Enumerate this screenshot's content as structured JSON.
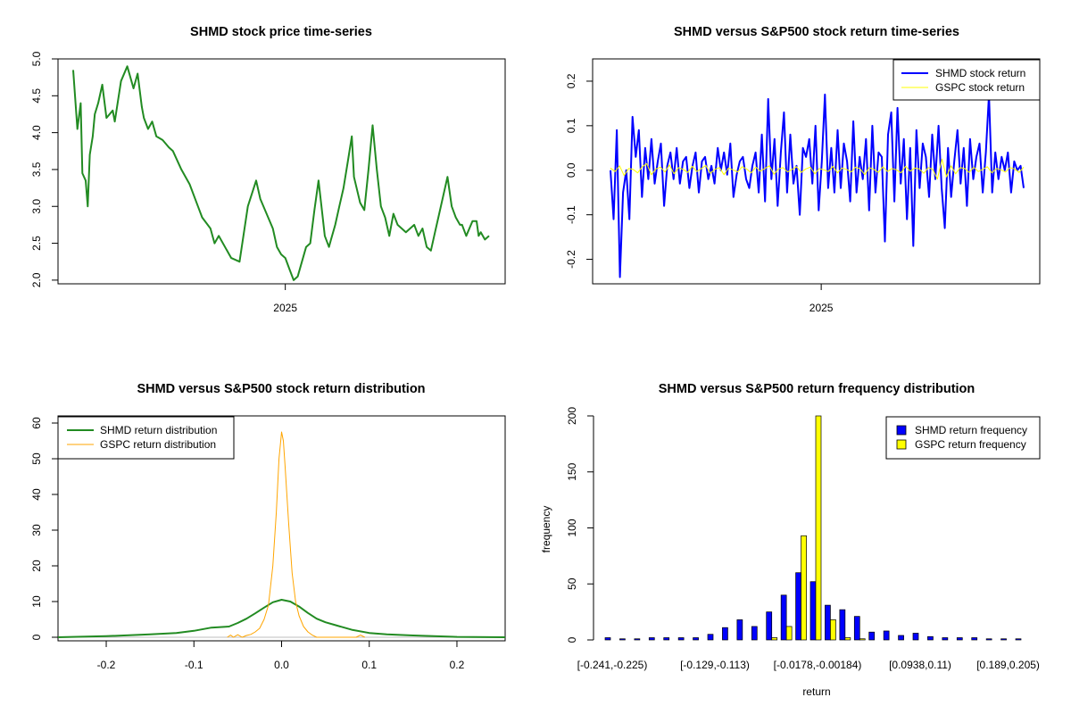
{
  "chart_data": [
    {
      "type": "line",
      "title": "SHMD stock price time-series",
      "xlabel": "",
      "ylabel": "",
      "x_tick_labels": [
        "2025"
      ],
      "x_tick_fraction": [
        0.51
      ],
      "ylim": [
        1.95,
        5.0
      ],
      "y_ticks": [
        "2.0",
        "2.5",
        "3.0",
        "3.5",
        "4.0",
        "4.5",
        "5.0"
      ],
      "series": [
        {
          "color": "#228B22",
          "x": [
            0.0,
            0.01,
            0.018,
            0.022,
            0.03,
            0.035,
            0.04,
            0.047,
            0.052,
            0.06,
            0.07,
            0.08,
            0.095,
            0.1,
            0.115,
            0.13,
            0.145,
            0.155,
            0.165,
            0.17,
            0.18,
            0.19,
            0.2,
            0.215,
            0.23,
            0.24,
            0.26,
            0.28,
            0.3,
            0.31,
            0.33,
            0.34,
            0.35,
            0.37,
            0.38,
            0.4,
            0.42,
            0.44,
            0.45,
            0.465,
            0.48,
            0.49,
            0.5,
            0.51,
            0.52,
            0.53,
            0.54,
            0.56,
            0.57,
            0.58,
            0.59,
            0.6,
            0.605,
            0.615,
            0.62,
            0.63,
            0.64,
            0.65,
            0.66,
            0.67,
            0.675,
            0.69,
            0.7,
            0.71,
            0.72,
            0.73,
            0.74,
            0.75,
            0.76,
            0.77,
            0.78,
            0.79,
            0.8,
            0.81,
            0.82,
            0.83,
            0.84,
            0.85,
            0.86,
            0.87,
            0.88,
            0.9,
            0.91,
            0.92,
            0.93,
            0.935,
            0.945,
            0.96,
            0.97,
            0.975,
            0.98,
            0.99,
            1.0
          ],
          "values": [
            4.85,
            4.05,
            4.4,
            3.45,
            3.35,
            3.0,
            3.7,
            3.95,
            4.25,
            4.4,
            4.65,
            4.2,
            4.3,
            4.15,
            4.7,
            4.9,
            4.6,
            4.8,
            4.35,
            4.2,
            4.05,
            4.15,
            3.95,
            3.9,
            3.8,
            3.75,
            3.5,
            3.3,
            3.0,
            2.85,
            2.7,
            2.5,
            2.6,
            2.4,
            2.3,
            2.25,
            3.0,
            3.35,
            3.1,
            2.9,
            2.7,
            2.45,
            2.35,
            2.3,
            2.15,
            2.0,
            2.05,
            2.45,
            2.5,
            2.95,
            3.35,
            2.85,
            2.6,
            2.45,
            2.55,
            2.75,
            3.0,
            3.25,
            3.6,
            3.95,
            3.4,
            3.05,
            2.95,
            3.5,
            4.1,
            3.5,
            3.0,
            2.85,
            2.6,
            2.9,
            2.75,
            2.7,
            2.65,
            2.7,
            2.75,
            2.6,
            2.7,
            2.45,
            2.4,
            2.65,
            2.9,
            3.4,
            3.0,
            2.85,
            2.75,
            2.75,
            2.6,
            2.8,
            2.8,
            2.6,
            2.65,
            2.55,
            2.6
          ]
        }
      ]
    },
    {
      "type": "line",
      "title": "SHMD versus S&P500 stock return time-series",
      "xlabel": "",
      "ylabel": "",
      "x_tick_labels": [
        "2025"
      ],
      "x_tick_fraction": [
        0.51
      ],
      "ylim": [
        -0.255,
        0.25
      ],
      "y_ticks": [
        "-0.2",
        "-0.1",
        "0.0",
        "0.1",
        "0.2"
      ],
      "y_tick_values": [
        -0.2,
        -0.1,
        0.0,
        0.1,
        0.2
      ],
      "legend": {
        "position": "top-right",
        "entries": [
          "SHMD stock return",
          "GSPC stock return"
        ]
      },
      "series": [
        {
          "name": "SHMD stock return",
          "color": "#0000FF",
          "values": [
            0.0,
            -0.11,
            0.09,
            -0.24,
            -0.05,
            0.0,
            -0.11,
            0.12,
            0.03,
            0.09,
            -0.06,
            0.05,
            -0.02,
            0.07,
            -0.03,
            0.02,
            0.06,
            -0.08,
            0.01,
            0.04,
            -0.02,
            0.05,
            -0.03,
            0.02,
            0.03,
            -0.04,
            0.01,
            0.04,
            -0.05,
            0.02,
            0.03,
            -0.02,
            0.01,
            -0.03,
            0.05,
            0.0,
            0.04,
            -0.01,
            0.06,
            -0.06,
            -0.01,
            0.02,
            0.03,
            -0.02,
            -0.04,
            0.01,
            0.04,
            -0.05,
            0.08,
            -0.07,
            0.16,
            -0.02,
            0.07,
            -0.08,
            0.04,
            0.13,
            -0.05,
            0.08,
            -0.03,
            0.01,
            -0.1,
            0.05,
            0.03,
            0.07,
            -0.03,
            0.1,
            -0.09,
            0.02,
            0.17,
            -0.04,
            0.05,
            -0.05,
            0.09,
            -0.04,
            0.06,
            0.02,
            -0.07,
            0.11,
            -0.05,
            0.03,
            -0.02,
            0.07,
            -0.09,
            0.1,
            -0.05,
            0.04,
            0.03,
            -0.16,
            0.08,
            0.13,
            -0.07,
            0.14,
            -0.03,
            0.07,
            -0.11,
            0.05,
            -0.17,
            0.09,
            -0.04,
            0.06,
            0.03,
            -0.06,
            0.08,
            -0.02,
            0.1,
            -0.04,
            -0.13,
            0.05,
            -0.06,
            0.02,
            0.09,
            -0.03,
            0.05,
            -0.08,
            0.07,
            -0.02,
            0.03,
            0.06,
            -0.05,
            0.04,
            0.17,
            -0.05,
            0.04,
            -0.02,
            0.03,
            0.0,
            0.04,
            -0.05,
            0.02,
            0.0,
            0.01,
            -0.04
          ]
        },
        {
          "name": "GSPC stock return",
          "color": "#FFFF00",
          "values": [
            0.005,
            -0.003,
            0.01,
            -0.012,
            0.004,
            0.002,
            -0.006,
            0.008,
            0.015,
            -0.01,
            0.003,
            0.007,
            -0.004,
            0.012,
            -0.008,
            0.006,
            0.002,
            -0.005,
            0.009,
            -0.003,
            0.004,
            0.011,
            -0.007,
            0.002,
            0.006,
            -0.01,
            0.005,
            0.001,
            -0.004,
            0.008,
            0.003,
            -0.006,
            0.007,
            -0.002,
            0.004,
            0.01,
            -0.009,
            0.003,
            0.006,
            -0.004,
            0.002,
            0.008,
            -0.005,
            0.003,
            0.007,
            -0.008,
            0.004,
            0.001,
            -0.003,
            0.009,
            -0.006,
            0.005,
            0.002,
            -0.004,
            0.007,
            0.003,
            -0.01,
            0.006,
            0.002,
            -0.005,
            0.008,
            -0.003,
            0.004,
            0.001,
            -0.006,
            0.009,
            -0.002,
            0.005,
            0.003,
            -0.007,
            0.006,
            0.002,
            -0.02,
            0.025,
            -0.015,
            0.01,
            -0.008,
            0.006,
            0.004,
            -0.005,
            0.007,
            -0.003,
            0.002,
            0.008,
            -0.006,
            0.004,
            0.001,
            -0.004,
            0.006,
            0.003,
            -0.005,
            0.007
          ]
        }
      ]
    },
    {
      "type": "line",
      "title": "SHMD versus S&P500 stock return distribution",
      "xlabel": "",
      "ylabel": "",
      "xlim": [
        -0.255,
        0.255
      ],
      "ylim": [
        -1,
        62
      ],
      "x_ticks": [
        -0.2,
        -0.1,
        0.0,
        0.1,
        0.2
      ],
      "x_tick_labels": [
        "-0.2",
        "-0.1",
        "0.0",
        "0.1",
        "0.2"
      ],
      "y_ticks": [
        0,
        10,
        20,
        30,
        40,
        50,
        60
      ],
      "y_tick_labels": [
        "0",
        "10",
        "20",
        "30",
        "40",
        "50",
        "60"
      ],
      "legend": {
        "position": "top-left",
        "entries": [
          "SHMD return distribution",
          "GSPC return distribution"
        ]
      },
      "series": [
        {
          "name": "SHMD return distribution",
          "color": "#228B22",
          "x": [
            -0.255,
            -0.2,
            -0.15,
            -0.12,
            -0.1,
            -0.08,
            -0.06,
            -0.05,
            -0.04,
            -0.03,
            -0.02,
            -0.01,
            0.0,
            0.01,
            0.02,
            0.03,
            0.04,
            0.05,
            0.06,
            0.08,
            0.1,
            0.12,
            0.15,
            0.2,
            0.255
          ],
          "values": [
            0.0,
            0.3,
            0.8,
            1.2,
            1.8,
            2.7,
            3.0,
            4.0,
            5.2,
            6.7,
            8.3,
            9.8,
            10.5,
            10.0,
            8.6,
            6.8,
            5.2,
            4.2,
            3.5,
            2.1,
            1.2,
            0.8,
            0.5,
            0.1,
            0.0
          ]
        },
        {
          "name": "GSPC return distribution",
          "color": "#FFA500",
          "x": [
            -0.062,
            -0.058,
            -0.055,
            -0.05,
            -0.045,
            -0.04,
            -0.035,
            -0.03,
            -0.025,
            -0.02,
            -0.015,
            -0.01,
            -0.006,
            -0.003,
            0.0,
            0.002,
            0.004,
            0.008,
            0.012,
            0.016,
            0.02,
            0.025,
            0.03,
            0.035,
            0.04,
            0.085,
            0.09,
            0.095
          ],
          "values": [
            0.0,
            0.6,
            0.0,
            0.7,
            0.0,
            0.5,
            0.8,
            1.5,
            2.5,
            5.0,
            9.0,
            20.0,
            35.0,
            50.0,
            57.5,
            55.0,
            48.0,
            32.0,
            18.0,
            10.0,
            6.0,
            3.0,
            1.5,
            0.6,
            0.0,
            0.0,
            0.6,
            0.0
          ]
        }
      ]
    },
    {
      "type": "bar",
      "title": "SHMD versus S&P500 return frequency distribution",
      "xlabel": "return",
      "ylabel": "frequency",
      "ylim": [
        0,
        200
      ],
      "y_ticks": [
        0,
        50,
        100,
        150,
        200
      ],
      "y_tick_labels": [
        "0",
        "50",
        "100",
        "150",
        "200"
      ],
      "x_tick_labels": [
        "[-0.241,-0.225)",
        "[-0.129,-0.113)",
        "[-0.0178,-0.00184)",
        "[0.0938,0.11)",
        "[0.189,0.205)"
      ],
      "x_tick_bins": [
        0,
        7,
        14,
        21,
        27
      ],
      "legend": {
        "position": "top-right",
        "entries": [
          "SHMD return frequency",
          "GSPC return frequency"
        ]
      },
      "series": [
        {
          "name": "SHMD return frequency",
          "color": "#0000FF",
          "values": [
            2,
            1,
            1,
            2,
            2,
            2,
            2,
            5,
            11,
            18,
            12,
            25,
            40,
            60,
            52,
            31,
            27,
            21,
            7,
            8,
            4,
            6,
            3,
            2,
            2,
            2,
            1,
            1,
            1
          ]
        },
        {
          "name": "GSPC return frequency",
          "color": "#FFFF00",
          "values": [
            0,
            0,
            0,
            0,
            0,
            0,
            0,
            0,
            0,
            0,
            0,
            2,
            12,
            93,
            200,
            18,
            2,
            1,
            0,
            0,
            0,
            0,
            0,
            0,
            0,
            0,
            0,
            0,
            0
          ]
        }
      ]
    }
  ]
}
